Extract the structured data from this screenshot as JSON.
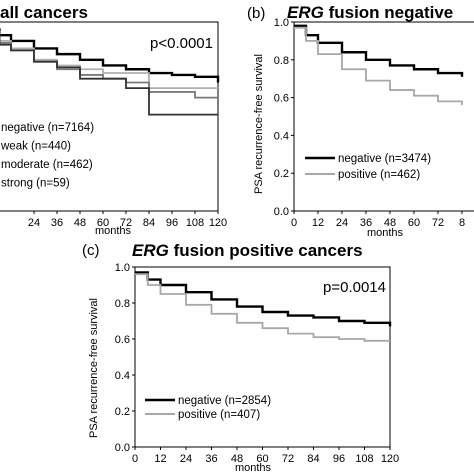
{
  "chart_data": [
    {
      "id": "a",
      "type": "line",
      "title": "all cancers",
      "annotation": "p<0.0001",
      "xlabel": "months",
      "ylabel": "",
      "xlim": [
        0,
        120
      ],
      "ylim": [
        0,
        1.0
      ],
      "x_ticks": [
        "24",
        "36",
        "48",
        "60",
        "72",
        "84",
        "96",
        "108",
        "120"
      ],
      "y_ticks": [],
      "legend_placement": "bottom-left",
      "series": [
        {
          "name": "negative (n=7164)",
          "legend_text": "negative (n=7164)",
          "color": "#000000",
          "x": [
            0,
            6,
            12,
            24,
            36,
            48,
            60,
            72,
            84,
            96,
            108,
            120
          ],
          "y": [
            0.96,
            0.93,
            0.9,
            0.86,
            0.83,
            0.8,
            0.77,
            0.75,
            0.73,
            0.72,
            0.71,
            0.68
          ]
        },
        {
          "name": "weak (n=440)",
          "legend_text": "weak (n=440)",
          "color": "#b0b0b0",
          "x": [
            0,
            6,
            12,
            24,
            36,
            48,
            60,
            72,
            84,
            96,
            108,
            120
          ],
          "y": [
            0.95,
            0.9,
            0.86,
            0.8,
            0.77,
            0.75,
            0.73,
            0.73,
            0.65,
            0.65,
            0.65,
            0.65
          ]
        },
        {
          "name": "moderate (n=462)",
          "legend_text": "moderate (n=462)",
          "color": "#7a7a7a",
          "x": [
            0,
            6,
            12,
            24,
            36,
            48,
            60,
            72,
            84,
            96,
            108,
            120
          ],
          "y": [
            0.94,
            0.89,
            0.85,
            0.79,
            0.75,
            0.72,
            0.7,
            0.68,
            0.63,
            0.63,
            0.6,
            0.6
          ]
        },
        {
          "name": "strong (n=59)",
          "legend_text": "strong (n=59)",
          "color": "#333333",
          "x": [
            0,
            6,
            12,
            24,
            36,
            48,
            60,
            72,
            84,
            96,
            108,
            120
          ],
          "y": [
            0.93,
            0.88,
            0.85,
            0.79,
            0.76,
            0.7,
            0.7,
            0.65,
            0.51,
            0.51,
            0.51,
            0.51
          ]
        }
      ]
    },
    {
      "id": "b",
      "type": "line",
      "title_italic": "ERG",
      "title_rest": " fusion negative",
      "label": "(b)",
      "xlabel": "months",
      "ylabel": "PSA recurrence-free survival",
      "xlim": [
        0,
        84
      ],
      "ylim": [
        0,
        1.0
      ],
      "x_ticks": [
        "0",
        "12",
        "24",
        "36",
        "48",
        "60",
        "72",
        "8"
      ],
      "y_ticks": [
        "0.0",
        "0.2",
        "0.4",
        "0.6",
        "0.8",
        "1.0"
      ],
      "legend_placement": "bottom-left",
      "series": [
        {
          "name": "negative (n=3474)",
          "legend_text": "negative (n=3474)",
          "color": "#000000",
          "x": [
            0,
            6,
            12,
            24,
            36,
            48,
            60,
            72,
            84
          ],
          "y": [
            0.98,
            0.93,
            0.89,
            0.84,
            0.8,
            0.77,
            0.75,
            0.73,
            0.71
          ]
        },
        {
          "name": "positive (n=462)",
          "legend_text": "positive (n=462)",
          "color": "#a8a8a8",
          "x": [
            0,
            6,
            12,
            24,
            36,
            48,
            60,
            72,
            84
          ],
          "y": [
            0.97,
            0.9,
            0.83,
            0.75,
            0.69,
            0.64,
            0.61,
            0.58,
            0.56
          ]
        }
      ]
    },
    {
      "id": "c",
      "type": "line",
      "title_italic": "ERG",
      "title_rest": " fusion positive cancers",
      "label": "(c)",
      "annotation": "p=0.0014",
      "xlabel": "months",
      "ylabel": "PSA recurrence-free survival",
      "xlim": [
        0,
        120
      ],
      "ylim": [
        0,
        1.0
      ],
      "x_ticks": [
        "0",
        "12",
        "24",
        "36",
        "48",
        "60",
        "72",
        "84",
        "96",
        "108",
        "120"
      ],
      "y_ticks": [
        "0.0",
        "0.2",
        "0.4",
        "0.6",
        "0.8",
        "1.0"
      ],
      "legend_placement": "bottom-left",
      "series": [
        {
          "name": "negative (n=2854)",
          "legend_text": "negative (n=2854)",
          "color": "#000000",
          "x": [
            0,
            6,
            12,
            24,
            36,
            48,
            60,
            72,
            84,
            96,
            108,
            120
          ],
          "y": [
            0.97,
            0.93,
            0.9,
            0.86,
            0.82,
            0.78,
            0.75,
            0.73,
            0.72,
            0.7,
            0.69,
            0.67
          ]
        },
        {
          "name": "positive (n=407)",
          "legend_text": "positive (n=407)",
          "color": "#a8a8a8",
          "x": [
            0,
            6,
            12,
            24,
            36,
            48,
            60,
            72,
            84,
            96,
            108,
            120
          ],
          "y": [
            0.96,
            0.9,
            0.85,
            0.79,
            0.74,
            0.69,
            0.66,
            0.63,
            0.61,
            0.6,
            0.59,
            0.59
          ]
        }
      ]
    }
  ]
}
